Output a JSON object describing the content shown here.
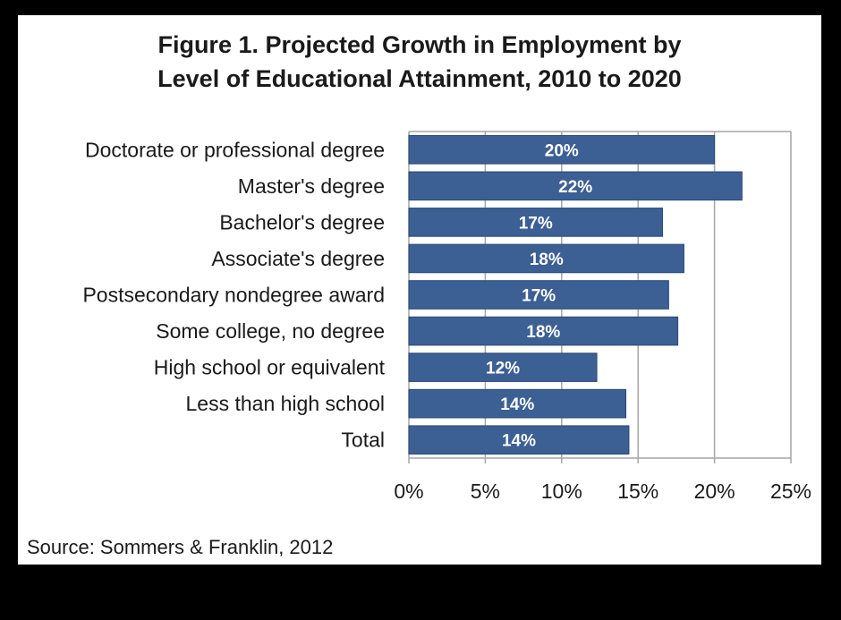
{
  "chart_data": {
    "type": "bar",
    "orientation": "horizontal",
    "title_lines": [
      "Figure 1. Projected Growth in Employment by",
      "Level of Educational Attainment, 2010 to 2020"
    ],
    "categories": [
      "Doctorate or professional degree",
      "Master's degree",
      "Bachelor's degree",
      "Associate's degree",
      "Postsecondary nondegree award",
      "Some college, no degree",
      "High school or equivalent",
      "Less than high school",
      "Total"
    ],
    "values": [
      20,
      21.8,
      16.6,
      18,
      17,
      17.6,
      12.3,
      14.2,
      14.4
    ],
    "data_labels": [
      "20%",
      "22%",
      "17%",
      "18%",
      "17%",
      "18%",
      "12%",
      "14%",
      "14%"
    ],
    "xlim": [
      0,
      25
    ],
    "xticks": [
      0,
      5,
      10,
      15,
      20,
      25
    ],
    "xtick_labels": [
      "0%",
      "5%",
      "10%",
      "15%",
      "20%",
      "25%"
    ],
    "grid": "vertical",
    "bar_color": "#3c5f94",
    "source": "Source: Sommers & Franklin, 2012"
  }
}
